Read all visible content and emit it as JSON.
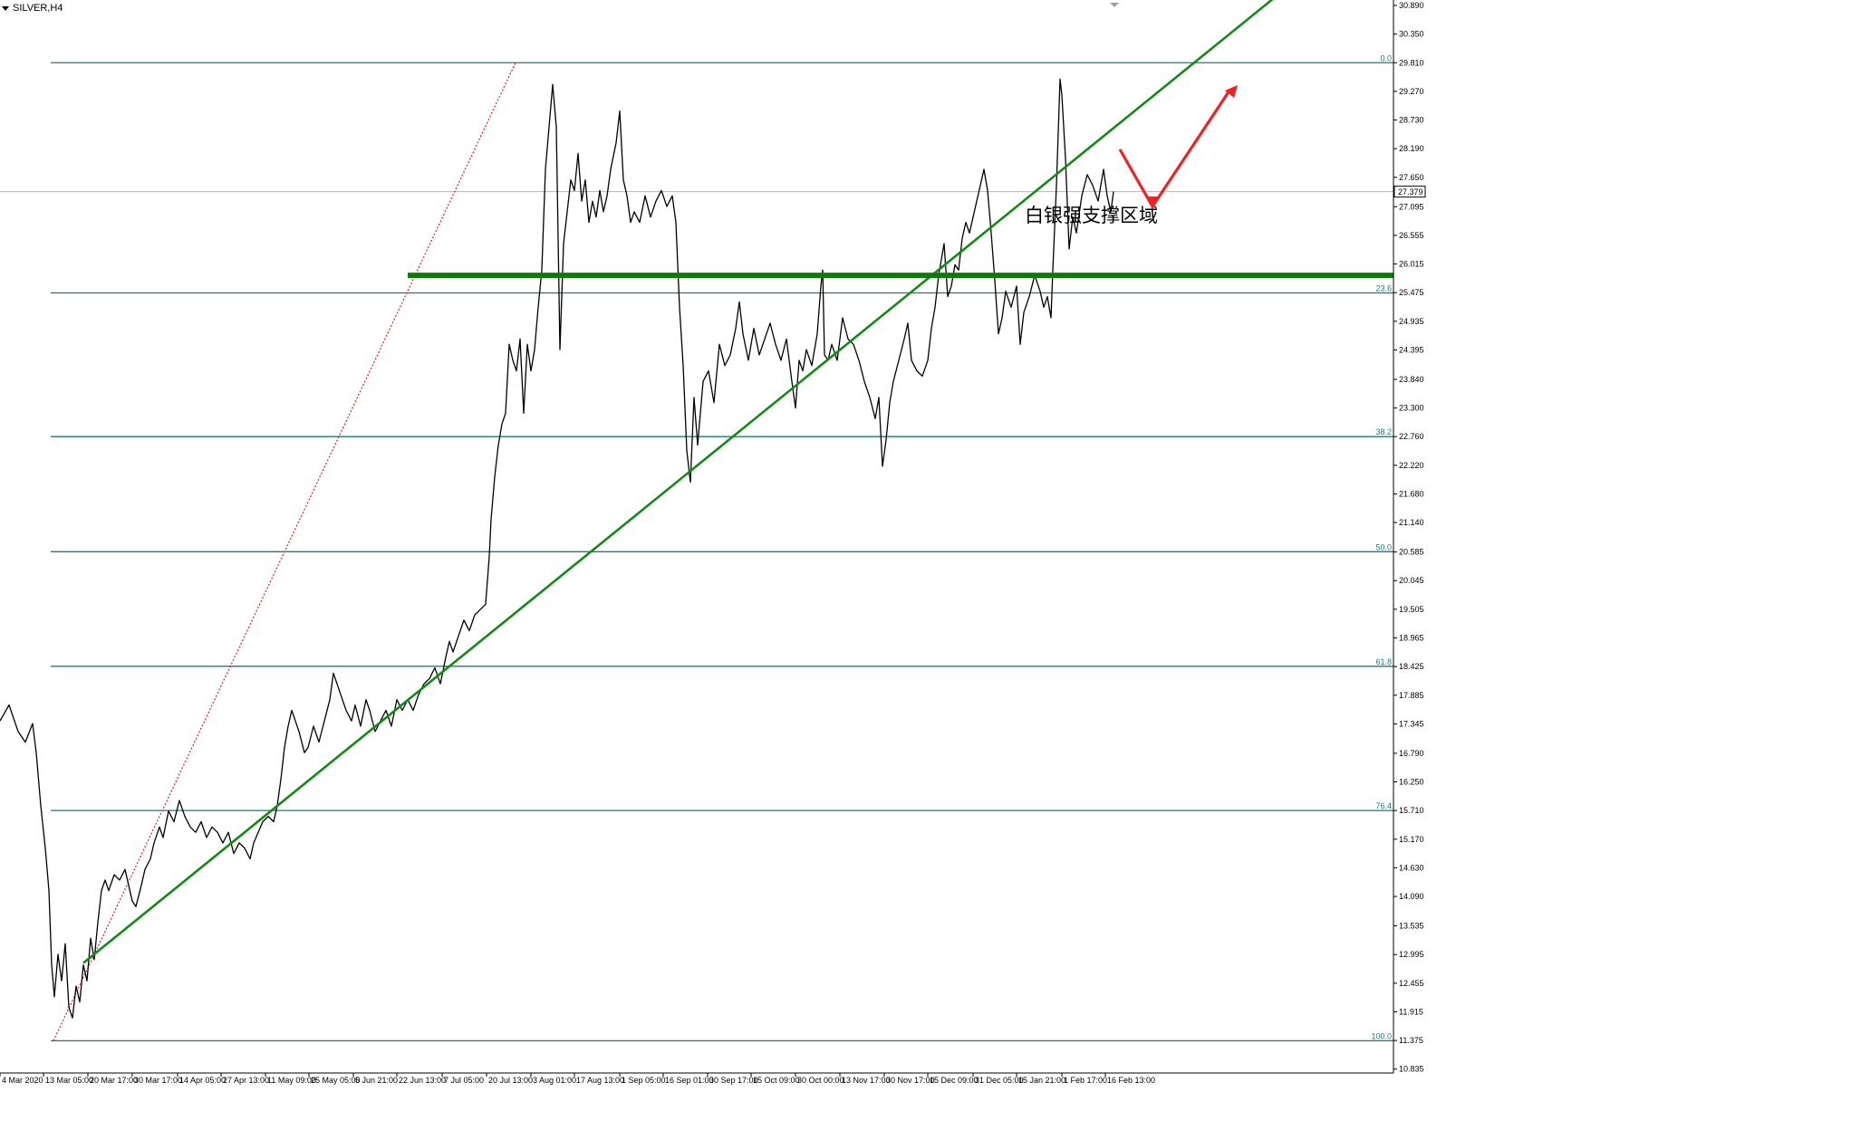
{
  "symbol": "SILVER,H4",
  "current_price": "27.379",
  "annotation": "白银强支撑区域",
  "colors": {
    "fib": "#1b7b7b",
    "trend": "#138a13",
    "support": "#0e7a0e",
    "fan": "#e02020",
    "arrow": "#f22020",
    "price": "#000000",
    "grid": "#b5b5b5"
  },
  "chart_data": {
    "type": "line",
    "title": "SILVER,H4",
    "xlabel": "",
    "ylabel": "",
    "ylim": [
      10.83,
      30.89
    ],
    "y_axis_labels": [
      "30.890",
      "30.350",
      "29.810",
      "29.270",
      "28.730",
      "28.190",
      "27.650",
      "27.095",
      "26.555",
      "26.015",
      "25.475",
      "24.935",
      "24.395",
      "23.840",
      "23.300",
      "22.760",
      "22.220",
      "21.680",
      "21.140",
      "20.585",
      "20.045",
      "19.505",
      "18.965",
      "18.425",
      "17.885",
      "17.345",
      "16.790",
      "16.250",
      "15.710",
      "15.170",
      "14.630",
      "14.090",
      "13.535",
      "12.995",
      "12.455",
      "11.915",
      "11.375",
      "10.835"
    ],
    "x_axis_labels": [
      "4 Mar 2020",
      "13 Mar 05:00",
      "20 Mar 17:00",
      "30 Mar 17:00",
      "14 Apr 05:00",
      "27 Apr 13:00",
      "11 May 09:00",
      "25 May 05:00",
      "5 Jun 21:00",
      "22 Jun 13:00",
      "7 Jul 05:00",
      "20 Jul 13:00",
      "3 Aug 01:00",
      "17 Aug 13:00",
      "1 Sep 05:00",
      "16 Sep 01:00",
      "30 Sep 17:00",
      "15 Oct 09:00",
      "30 Oct 00:00",
      "13 Nov 17:00",
      "30 Nov 17:00",
      "15 Dec 09:00",
      "31 Dec 05:00",
      "15 Jan 21:00",
      "1 Feb 17:00",
      "16 Feb 13:00"
    ],
    "fibonacci": [
      {
        "label": "0.0",
        "value": 29.81
      },
      {
        "label": "23.6",
        "value": 25.47
      },
      {
        "label": "38.2",
        "value": 22.76
      },
      {
        "label": "50.0",
        "value": 20.59
      },
      {
        "label": "61.8",
        "value": 18.43
      },
      {
        "label": "76.4",
        "value": 15.71
      },
      {
        "label": "100.0",
        "value": 11.37
      }
    ],
    "support_zone": {
      "value": 25.8
    },
    "trendline": {
      "from": [
        "20 Mar 17:00",
        12.96
      ],
      "to": [
        "16 Feb 13:00",
        28.73
      ]
    },
    "series": [
      {
        "values": [
          [
            0,
            17.4
          ],
          [
            10,
            17.7
          ],
          [
            20,
            17.2
          ],
          [
            28,
            17.0
          ],
          [
            36,
            17.35
          ],
          [
            40,
            16.8
          ],
          [
            45,
            15.8
          ],
          [
            50,
            15.0
          ],
          [
            54,
            14.2
          ],
          [
            57,
            12.8
          ],
          [
            60,
            12.2
          ],
          [
            64,
            13.0
          ],
          [
            68,
            12.5
          ],
          [
            72,
            13.2
          ],
          [
            76,
            12.0
          ],
          [
            80,
            11.8
          ],
          [
            84,
            12.4
          ],
          [
            88,
            12.1
          ],
          [
            92,
            12.8
          ],
          [
            96,
            12.5
          ],
          [
            100,
            13.3
          ],
          [
            104,
            12.9
          ],
          [
            108,
            13.6
          ],
          [
            112,
            14.2
          ],
          [
            116,
            14.4
          ],
          [
            120,
            14.2
          ],
          [
            126,
            14.5
          ],
          [
            132,
            14.4
          ],
          [
            138,
            14.6
          ],
          [
            142,
            14.3
          ],
          [
            146,
            14.0
          ],
          [
            150,
            13.9
          ],
          [
            156,
            14.3
          ],
          [
            160,
            14.6
          ],
          [
            166,
            14.8
          ],
          [
            170,
            15.1
          ],
          [
            176,
            15.4
          ],
          [
            180,
            15.2
          ],
          [
            186,
            15.7
          ],
          [
            192,
            15.5
          ],
          [
            198,
            15.9
          ],
          [
            204,
            15.6
          ],
          [
            210,
            15.4
          ],
          [
            216,
            15.3
          ],
          [
            222,
            15.5
          ],
          [
            228,
            15.2
          ],
          [
            234,
            15.4
          ],
          [
            240,
            15.3
          ],
          [
            246,
            15.1
          ],
          [
            252,
            15.3
          ],
          [
            258,
            14.9
          ],
          [
            264,
            15.1
          ],
          [
            270,
            15.0
          ],
          [
            276,
            14.8
          ],
          [
            280,
            15.1
          ],
          [
            285,
            15.3
          ],
          [
            290,
            15.5
          ],
          [
            296,
            15.6
          ],
          [
            302,
            15.5
          ],
          [
            306,
            15.8
          ],
          [
            310,
            16.3
          ],
          [
            314,
            16.9
          ],
          [
            318,
            17.3
          ],
          [
            322,
            17.6
          ],
          [
            326,
            17.4
          ],
          [
            330,
            17.2
          ],
          [
            336,
            16.8
          ],
          [
            340,
            16.9
          ],
          [
            346,
            17.3
          ],
          [
            352,
            17.0
          ],
          [
            358,
            17.4
          ],
          [
            364,
            17.8
          ],
          [
            368,
            18.3
          ],
          [
            372,
            18.1
          ],
          [
            376,
            17.9
          ],
          [
            382,
            17.6
          ],
          [
            388,
            17.4
          ],
          [
            392,
            17.7
          ],
          [
            398,
            17.3
          ],
          [
            404,
            17.8
          ],
          [
            408,
            17.6
          ],
          [
            414,
            17.2
          ],
          [
            420,
            17.4
          ],
          [
            426,
            17.6
          ],
          [
            432,
            17.3
          ],
          [
            438,
            17.8
          ],
          [
            444,
            17.6
          ],
          [
            450,
            17.8
          ],
          [
            456,
            17.6
          ],
          [
            462,
            17.9
          ],
          [
            468,
            18.1
          ],
          [
            474,
            18.2
          ],
          [
            480,
            18.4
          ],
          [
            486,
            18.1
          ],
          [
            492,
            18.6
          ],
          [
            496,
            18.9
          ],
          [
            500,
            18.7
          ],
          [
            506,
            19.0
          ],
          [
            512,
            19.3
          ],
          [
            518,
            19.1
          ],
          [
            524,
            19.4
          ],
          [
            530,
            19.5
          ],
          [
            536,
            19.6
          ],
          [
            540,
            20.5
          ],
          [
            542,
            21.2
          ],
          [
            546,
            22.0
          ],
          [
            550,
            22.6
          ],
          [
            554,
            23.0
          ],
          [
            558,
            23.2
          ],
          [
            562,
            24.5
          ],
          [
            566,
            24.2
          ],
          [
            570,
            24.0
          ],
          [
            574,
            24.6
          ],
          [
            578,
            23.2
          ],
          [
            582,
            24.5
          ],
          [
            586,
            24.0
          ],
          [
            590,
            24.4
          ],
          [
            594,
            25.2
          ],
          [
            598,
            25.9
          ],
          [
            602,
            27.8
          ],
          [
            606,
            28.6
          ],
          [
            610,
            29.4
          ],
          [
            614,
            28.6
          ],
          [
            618,
            24.4
          ],
          [
            622,
            26.4
          ],
          [
            626,
            27.0
          ],
          [
            630,
            27.6
          ],
          [
            634,
            27.4
          ],
          [
            638,
            28.1
          ],
          [
            642,
            27.2
          ],
          [
            646,
            27.6
          ],
          [
            650,
            26.8
          ],
          [
            654,
            27.2
          ],
          [
            658,
            26.9
          ],
          [
            662,
            27.4
          ],
          [
            666,
            27.0
          ],
          [
            670,
            27.3
          ],
          [
            674,
            27.8
          ],
          [
            680,
            28.3
          ],
          [
            684,
            28.9
          ],
          [
            688,
            27.6
          ],
          [
            692,
            27.3
          ],
          [
            696,
            26.8
          ],
          [
            700,
            27.0
          ],
          [
            706,
            26.8
          ],
          [
            712,
            27.3
          ],
          [
            718,
            26.9
          ],
          [
            724,
            27.2
          ],
          [
            730,
            27.4
          ],
          [
            736,
            27.1
          ],
          [
            742,
            27.3
          ],
          [
            746,
            26.8
          ],
          [
            750,
            25.2
          ],
          [
            754,
            24.1
          ],
          [
            758,
            22.5
          ],
          [
            762,
            21.9
          ],
          [
            766,
            23.5
          ],
          [
            770,
            22.6
          ],
          [
            776,
            23.8
          ],
          [
            782,
            24.0
          ],
          [
            788,
            23.4
          ],
          [
            794,
            24.5
          ],
          [
            800,
            24.1
          ],
          [
            806,
            24.3
          ],
          [
            812,
            24.8
          ],
          [
            816,
            25.3
          ],
          [
            820,
            24.7
          ],
          [
            826,
            24.2
          ],
          [
            832,
            24.8
          ],
          [
            838,
            24.3
          ],
          [
            844,
            24.6
          ],
          [
            850,
            24.9
          ],
          [
            856,
            24.5
          ],
          [
            862,
            24.2
          ],
          [
            868,
            24.6
          ],
          [
            874,
            23.8
          ],
          [
            878,
            23.3
          ],
          [
            882,
            24.2
          ],
          [
            886,
            24.0
          ],
          [
            890,
            24.4
          ],
          [
            896,
            24.1
          ],
          [
            902,
            24.7
          ],
          [
            906,
            25.6
          ],
          [
            908,
            25.9
          ],
          [
            910,
            24.3
          ],
          [
            914,
            24.2
          ],
          [
            918,
            24.5
          ],
          [
            924,
            24.2
          ],
          [
            930,
            25.0
          ],
          [
            936,
            24.6
          ],
          [
            942,
            24.5
          ],
          [
            948,
            24.2
          ],
          [
            954,
            23.8
          ],
          [
            960,
            23.5
          ],
          [
            966,
            23.1
          ],
          [
            970,
            23.5
          ],
          [
            974,
            22.2
          ],
          [
            978,
            22.7
          ],
          [
            982,
            23.4
          ],
          [
            986,
            23.8
          ],
          [
            992,
            24.2
          ],
          [
            998,
            24.6
          ],
          [
            1002,
            24.9
          ],
          [
            1006,
            24.2
          ],
          [
            1012,
            24.0
          ],
          [
            1018,
            23.9
          ],
          [
            1024,
            24.2
          ],
          [
            1028,
            24.8
          ],
          [
            1032,
            25.2
          ],
          [
            1036,
            25.8
          ],
          [
            1042,
            26.4
          ],
          [
            1046,
            25.4
          ],
          [
            1050,
            25.6
          ],
          [
            1054,
            26.0
          ],
          [
            1058,
            25.9
          ],
          [
            1062,
            26.5
          ],
          [
            1066,
            26.8
          ],
          [
            1070,
            26.6
          ],
          [
            1074,
            26.9
          ],
          [
            1078,
            27.2
          ],
          [
            1082,
            27.5
          ],
          [
            1086,
            27.8
          ],
          [
            1090,
            27.4
          ],
          [
            1094,
            26.6
          ],
          [
            1098,
            25.7
          ],
          [
            1102,
            24.7
          ],
          [
            1106,
            25.0
          ],
          [
            1110,
            25.5
          ],
          [
            1116,
            25.2
          ],
          [
            1122,
            25.6
          ],
          [
            1126,
            24.5
          ],
          [
            1130,
            25.1
          ],
          [
            1136,
            25.4
          ],
          [
            1142,
            25.8
          ],
          [
            1148,
            25.5
          ],
          [
            1152,
            25.2
          ],
          [
            1156,
            25.4
          ],
          [
            1160,
            25.0
          ],
          [
            1162,
            25.9
          ],
          [
            1166,
            27.5
          ],
          [
            1170,
            29.5
          ],
          [
            1172,
            29.2
          ],
          [
            1176,
            28.0
          ],
          [
            1180,
            26.3
          ],
          [
            1184,
            26.9
          ],
          [
            1188,
            26.6
          ],
          [
            1194,
            27.3
          ],
          [
            1200,
            27.7
          ],
          [
            1206,
            27.5
          ],
          [
            1212,
            27.2
          ],
          [
            1218,
            27.8
          ],
          [
            1222,
            27.3
          ],
          [
            1226,
            27.0
          ],
          [
            1229,
            27.38
          ]
        ]
      }
    ]
  }
}
